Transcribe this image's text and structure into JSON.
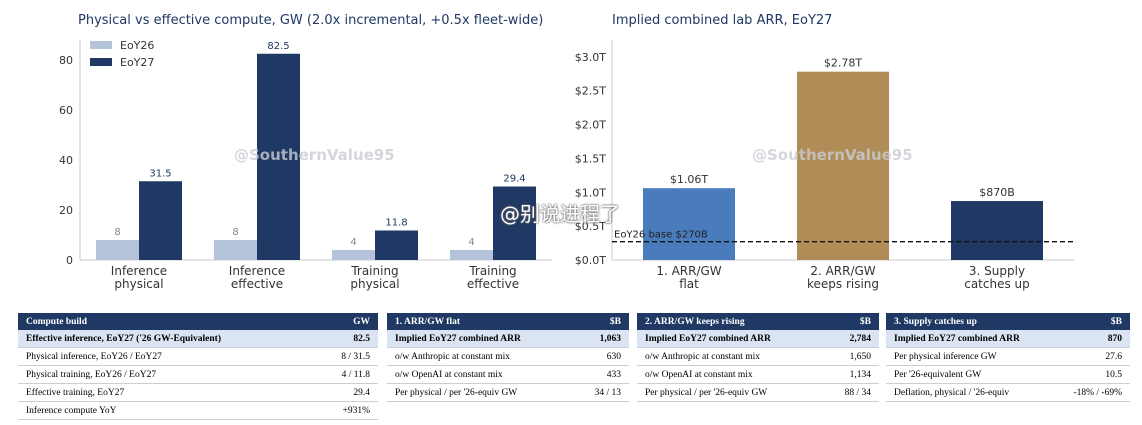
{
  "charts": {
    "left_title": "Physical vs effective compute, GW (2.0x incremental, +0.5x fleet-wide)",
    "right_title": "Implied combined lab ARR, EoY27"
  },
  "chart_data": [
    {
      "type": "bar",
      "title": "Physical vs effective compute, GW (2.0x incremental, +0.5x fleet-wide)",
      "categories": [
        "Inference\nphysical",
        "Inference\neffective",
        "Training\nphysical",
        "Training\neffective"
      ],
      "series": [
        {
          "name": "EoY26",
          "values": [
            8,
            8,
            4,
            4
          ],
          "labels": [
            "8",
            "8",
            "4",
            "4"
          ],
          "color": "#b4c3d9"
        },
        {
          "name": "EoY27",
          "values": [
            31.5,
            82.5,
            11.8,
            29.4
          ],
          "labels": [
            "31.5",
            "82.5",
            "11.8",
            "29.4"
          ],
          "color": "#1f3864"
        }
      ],
      "yticks": [
        0,
        20,
        40,
        60,
        80
      ],
      "ylim": [
        0,
        88
      ],
      "legend": "top-left",
      "grid": false
    },
    {
      "type": "bar",
      "title": "Implied combined lab ARR, EoY27",
      "categories": [
        "1. ARR/GW\nflat",
        "2. ARR/GW\nkeeps rising",
        "3. Supply\ncatches up"
      ],
      "values": [
        1.06,
        2.78,
        0.87
      ],
      "labels": [
        "$1.06T",
        "$2.78T",
        "$870B"
      ],
      "colors": [
        "#4a7bbd",
        "#b08d57",
        "#1f3864"
      ],
      "yticks": [
        0,
        0.5,
        1,
        1.5,
        2,
        2.5,
        3
      ],
      "ytick_labels": [
        "$0.0T",
        "$0.5T",
        "$1.0T",
        "$1.5T",
        "$2.0T",
        "$2.5T",
        "$3.0T"
      ],
      "ylim": [
        0,
        3.1
      ],
      "reference_line": {
        "value": 0.27,
        "label": "EoY26 base $270B"
      },
      "grid": false
    }
  ],
  "tables": {
    "compute": {
      "headers": [
        "Compute build",
        "GW"
      ],
      "rows": [
        [
          "Effective inference, EoY27 ('26 GW-Equivalent)",
          "82.5"
        ],
        [
          "Physical inference, EoY26 / EoY27",
          "8 / 31.5"
        ],
        [
          "Physical training, EoY26 / EoY27",
          "4 / 11.8"
        ],
        [
          "Effective training, EoY27",
          "29.4"
        ],
        [
          "Inference compute YoY",
          "+931%"
        ]
      ]
    },
    "flat": {
      "headers": [
        "1. ARR/GW flat",
        "$B"
      ],
      "rows": [
        [
          "Implied EoY27 combined ARR",
          "1,063"
        ],
        [
          "o/w Anthropic at constant mix",
          "630"
        ],
        [
          "o/w OpenAI at constant mix",
          "433"
        ],
        [
          "Per physical / per '26-equiv GW",
          "34 / 13"
        ]
      ]
    },
    "rising": {
      "headers": [
        "2. ARR/GW keeps rising",
        "$B"
      ],
      "rows": [
        [
          "Implied EoY27 combined ARR",
          "2,784"
        ],
        [
          "o/w Anthropic at constant mix",
          "1,650"
        ],
        [
          "o/w OpenAI at constant mix",
          "1,134"
        ],
        [
          "Per physical / per '26-equiv GW",
          "88 / 34"
        ]
      ]
    },
    "supply": {
      "headers": [
        "3. Supply catches up",
        "$B"
      ],
      "rows": [
        [
          "Implied EoY27 combined ARR",
          "870"
        ],
        [
          "Per physical inference GW",
          "27.6"
        ],
        [
          "Per '26-equivalent GW",
          "10.5"
        ],
        [
          "Deflation, physical / '26-equiv",
          "-18% / -69%"
        ]
      ]
    }
  },
  "watermarks": {
    "handle": "@SouthernValue95",
    "weibo": "@别说进程了"
  }
}
